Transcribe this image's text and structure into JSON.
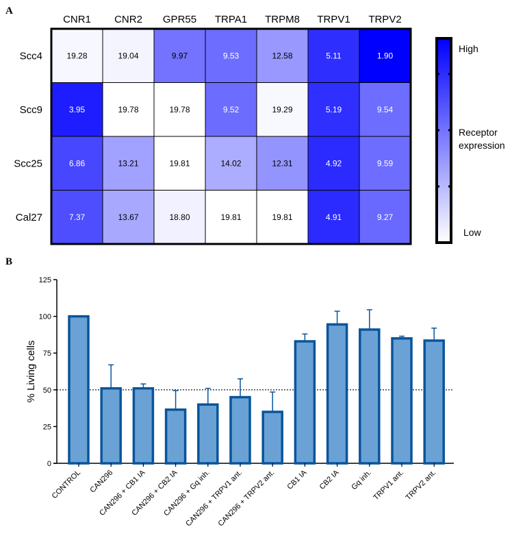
{
  "chart_data": [
    {
      "type": "heatmap",
      "panel_label": "A",
      "columns": [
        "CNR1",
        "CNR2",
        "GPR55",
        "TRPA1",
        "TRPM8",
        "TRPV1",
        "TRPV2"
      ],
      "rows": [
        "Scc4",
        "Scc9",
        "Scc25",
        "Cal27"
      ],
      "values": [
        [
          19.28,
          19.04,
          9.97,
          9.53,
          12.58,
          5.11,
          1.9
        ],
        [
          3.95,
          19.78,
          19.78,
          9.52,
          19.29,
          5.19,
          9.54
        ],
        [
          6.86,
          13.21,
          19.81,
          14.02,
          12.31,
          4.92,
          9.59
        ],
        [
          7.37,
          13.67,
          18.8,
          19.81,
          19.81,
          4.91,
          9.27
        ]
      ],
      "colorbar": {
        "title": "Receptor expression",
        "high_label": "High",
        "low_label": "Low",
        "high_color": "#0000ff",
        "low_color": "#ffffff"
      }
    },
    {
      "type": "bar",
      "panel_label": "B",
      "ylabel": "% Living cells",
      "ylim": [
        0,
        125
      ],
      "yticks": [
        0,
        25,
        50,
        75,
        100,
        125
      ],
      "reference_line": 50,
      "bar_color": "#6aa2d6",
      "edge_color": "#0a549b",
      "categories": [
        "CONTROL",
        "CAN296",
        "CAN296 + CB1 IA",
        "CAN296 + CB2 IA",
        "CAN296 + Gq inh.",
        "CAN296 + TRPV1 ant.",
        "CAN296 + TRPV2 ant.",
        "CB1 IA",
        "CB2 IA",
        "Gq inh.",
        "TRPV1 ant.",
        "TRPV2 ant."
      ],
      "values": [
        100,
        51,
        51,
        36.5,
        40,
        45,
        35,
        83,
        94.5,
        91,
        85,
        83.5
      ],
      "error_upper": [
        0,
        16,
        3,
        13,
        11,
        12.5,
        13.5,
        5,
        9,
        13.5,
        1.5,
        8.5
      ]
    }
  ]
}
